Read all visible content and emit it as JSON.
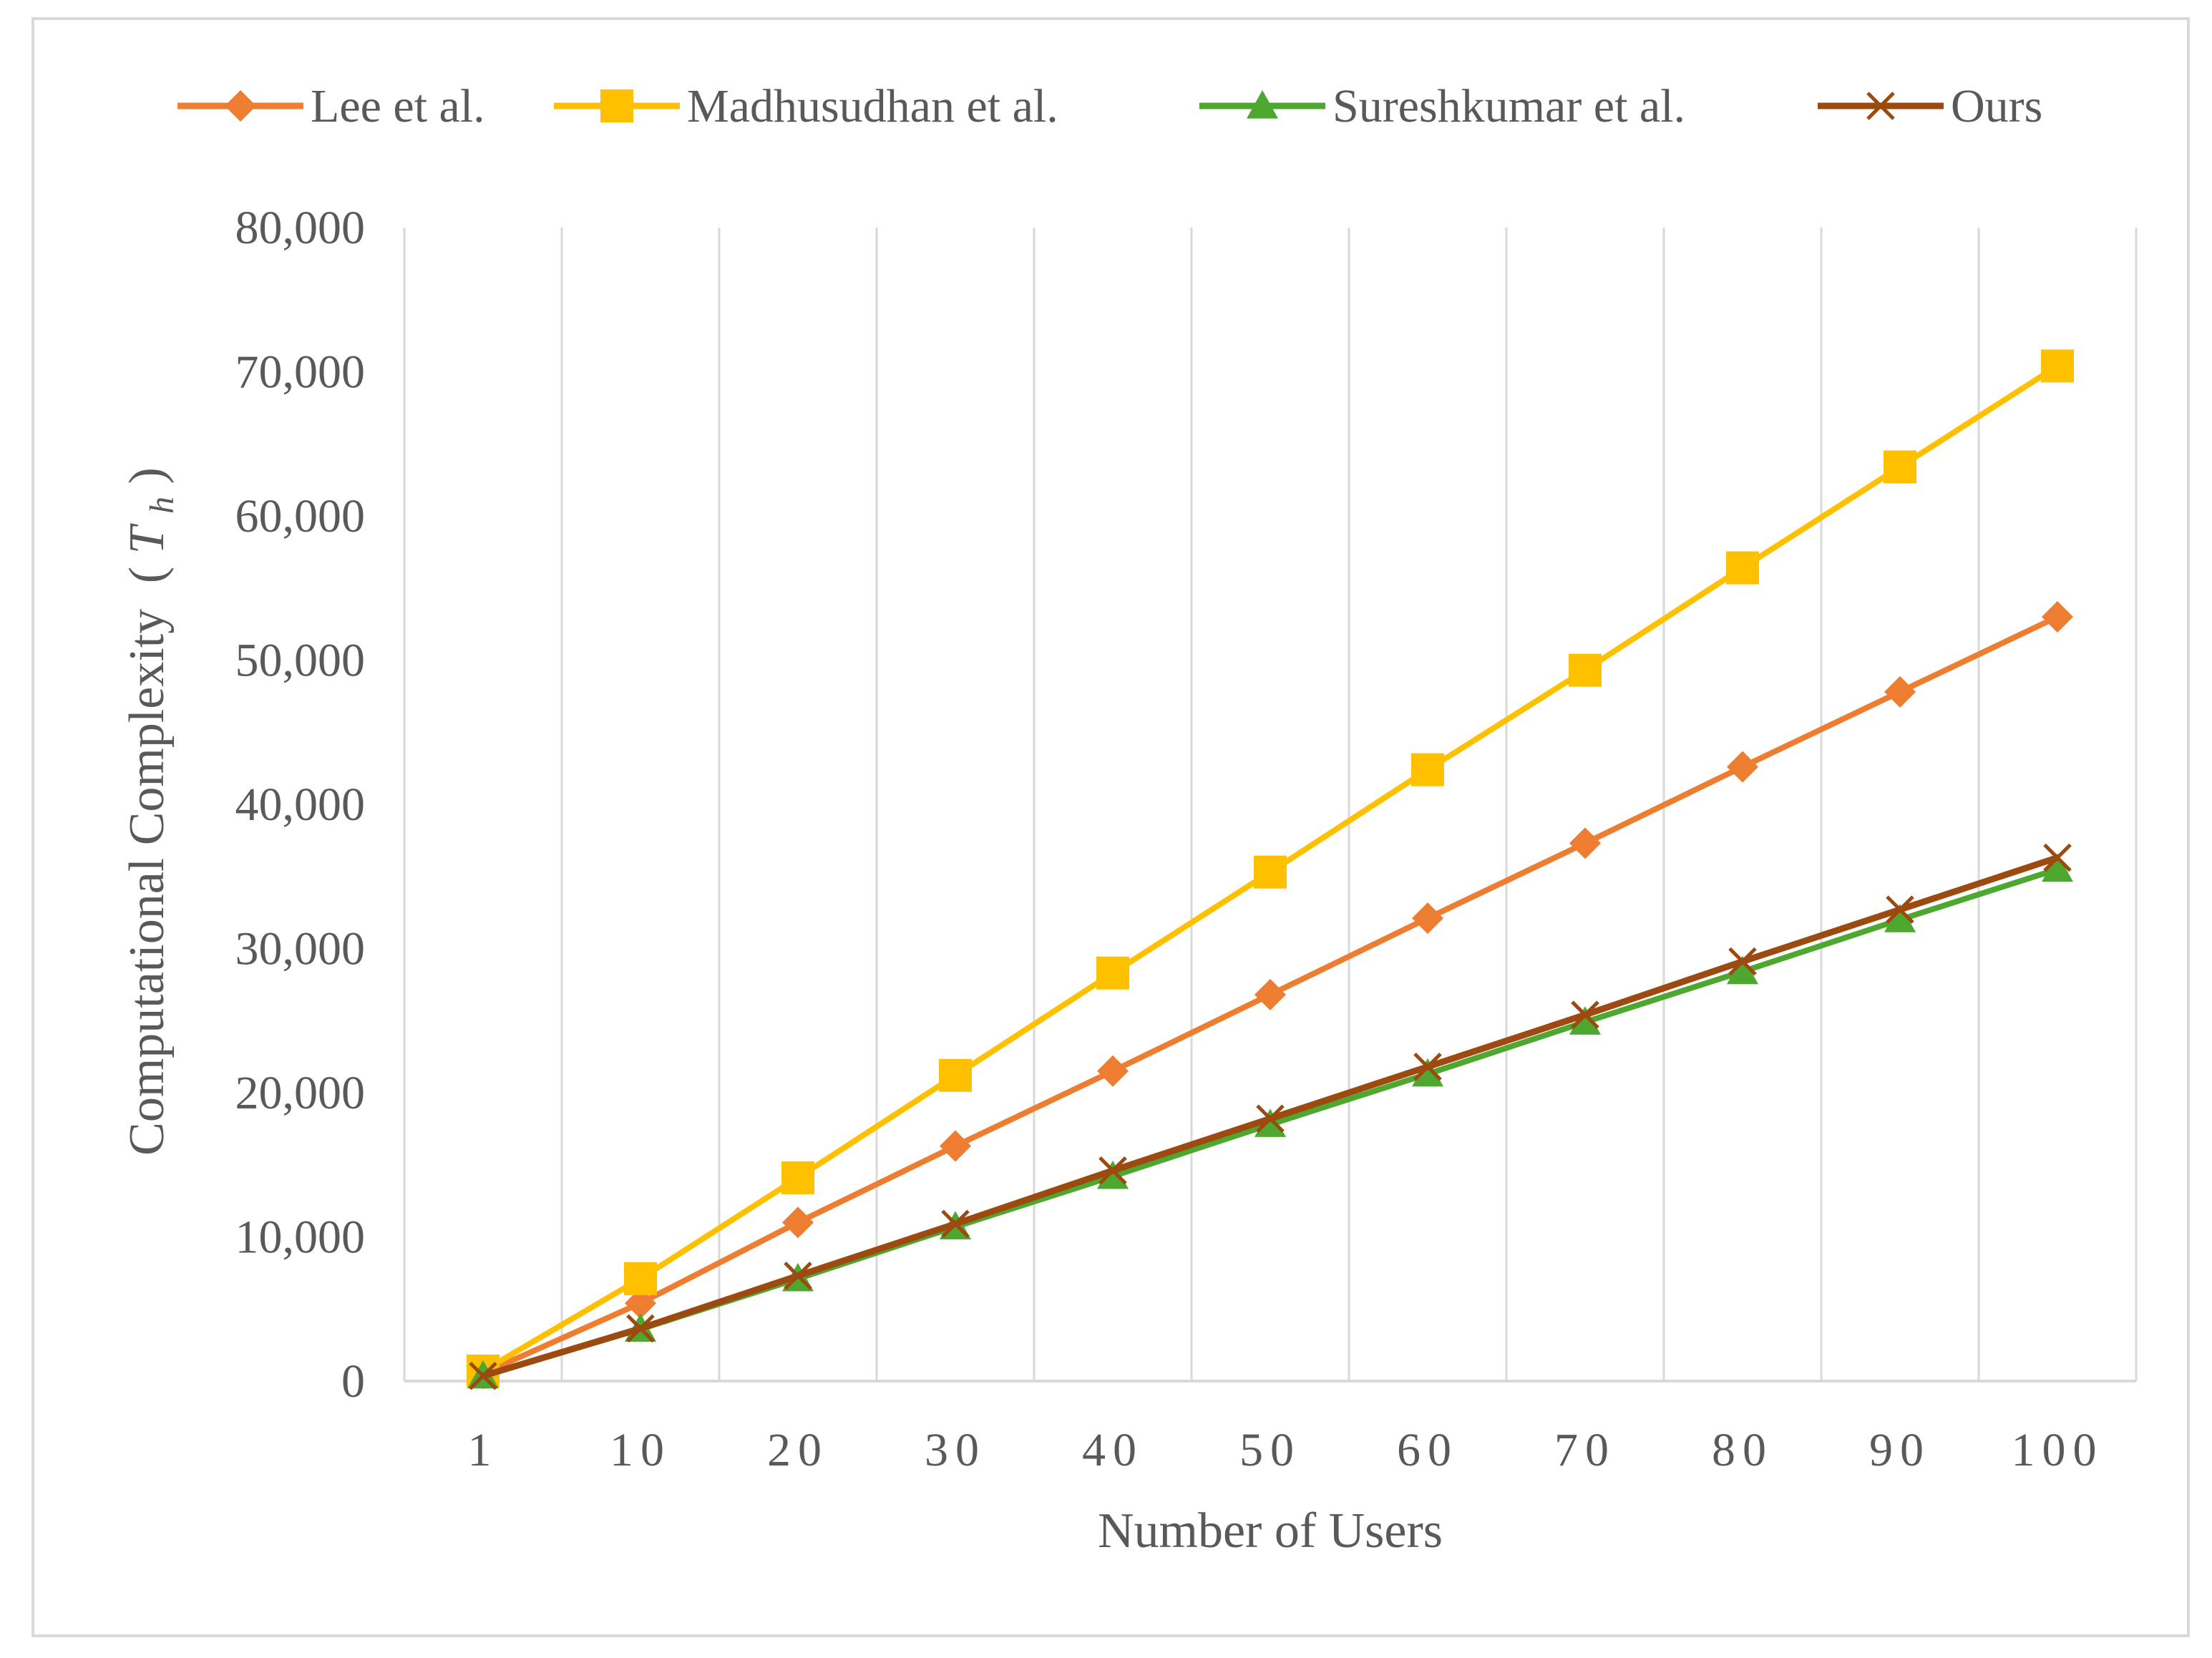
{
  "chart_data": {
    "type": "line",
    "title": "",
    "xlabel": "Number of Users",
    "ylabel": "Computational Complexity",
    "ylabel_symbol": "T",
    "ylabel_subscript": "h",
    "categories": [
      "1",
      "10",
      "20",
      "30",
      "40",
      "50",
      "60",
      "70",
      "80",
      "90",
      "100"
    ],
    "ylim": [
      0,
      80000
    ],
    "yticks": [
      0,
      10000,
      20000,
      30000,
      40000,
      50000,
      60000,
      70000,
      80000
    ],
    "ytick_labels": [
      "0",
      "10,000",
      "20,000",
      "30,000",
      "40,000",
      "50,000",
      "60,000",
      "70,000",
      "80,000"
    ],
    "grid": "vertical",
    "legend_position": "top",
    "series": [
      {
        "name": "Lee et al.",
        "color": "#ED7D31",
        "marker": "diamond",
        "values": [
          530,
          5400,
          11000,
          16300,
          21500,
          26800,
          32100,
          37300,
          42600,
          47800,
          53000
        ]
      },
      {
        "name": "Madhusudhan et al.",
        "color": "#FFC000",
        "marker": "square",
        "values": [
          700,
          7100,
          14100,
          21200,
          28300,
          35300,
          42400,
          49300,
          56400,
          63400,
          70400
        ]
      },
      {
        "name": "Sureshkumar et al.",
        "color": "#4EA72E",
        "marker": "triangle",
        "values": [
          360,
          3600,
          7100,
          10700,
          14200,
          17800,
          21300,
          24900,
          28400,
          32000,
          35500
        ]
      },
      {
        "name": "Ours",
        "color": "#9C4A0F",
        "marker": "x",
        "values": [
          360,
          3650,
          7300,
          10900,
          14600,
          18200,
          21800,
          25400,
          29100,
          32700,
          36300
        ]
      }
    ]
  }
}
